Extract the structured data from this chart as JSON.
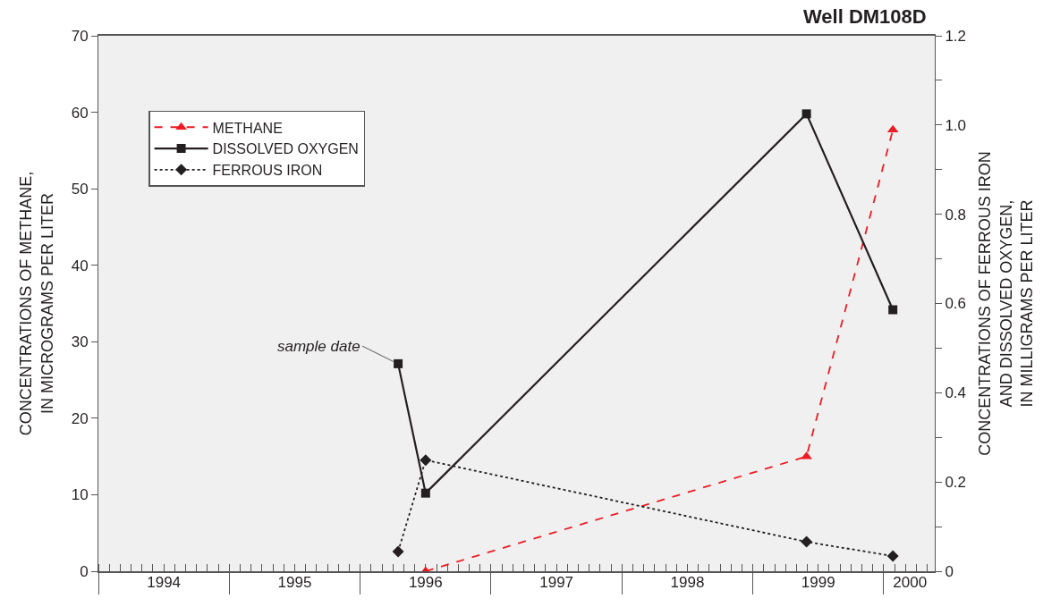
{
  "chart_data": {
    "type": "line",
    "title": "Well DM108D",
    "ylabel": "CONCENTRATIONS OF METHANE,\nIN MICROGRAMS PER LITER",
    "y2label": "CONCENTRATIONS OF FERROUS IRON\nAND DISSOLVED OXYGEN,\nIN MILLIGRAMS PER LITER",
    "series": [
      {
        "name": "METHANE",
        "color": "#ed1c24",
        "x": [
          1996.5,
          1999.41,
          2000.07
        ],
        "values": [
          0,
          15,
          57.7
        ],
        "marker": "triangle",
        "line_style": "dashed"
      },
      {
        "name": "DISSOLVED OXYGEN",
        "color": "#231f20",
        "x": [
          1996.29,
          1996.5,
          1999.41,
          2000.07
        ],
        "values": [
          0.465,
          0.175,
          1.025,
          0.586
        ],
        "marker": "square",
        "line_style": "solid",
        "axis": "y2"
      },
      {
        "name": "FERROUS IRON",
        "color": "#231f20",
        "x": [
          1996.29,
          1996.5,
          1999.41,
          2000.07
        ],
        "values": [
          0.044,
          0.249,
          0.066,
          0.034
        ],
        "marker": "diamond",
        "line_style": "dotted",
        "axis": "y2"
      }
    ],
    "annotations": [
      {
        "text": "sample date",
        "x": 1996.29,
        "y": 27.1
      }
    ],
    "xlim": [
      1994,
      2000.39
    ],
    "xticks": [
      {
        "value": 1994,
        "label": null
      },
      {
        "value": 1994.5,
        "label": "1994"
      },
      {
        "value": 1995,
        "label": null
      },
      {
        "value": 1995.5,
        "label": "1995"
      },
      {
        "value": 1996,
        "label": null
      },
      {
        "value": 1996.5,
        "label": "1996"
      },
      {
        "value": 1997,
        "label": null
      },
      {
        "value": 1997.5,
        "label": "1997"
      },
      {
        "value": 1998,
        "label": null
      },
      {
        "value": 1998.5,
        "label": "1998"
      },
      {
        "value": 1999,
        "label": null
      },
      {
        "value": 1999.5,
        "label": "1999"
      },
      {
        "value": 2000,
        "label": null
      },
      {
        "value": 2000.2,
        "label": "2000"
      }
    ],
    "ylim": [
      0,
      70
    ],
    "yticks": [
      0,
      10,
      20,
      30,
      40,
      50,
      60,
      70
    ],
    "y2lim": [
      0,
      1.2
    ],
    "y2ticks": [
      0,
      {
        "value": 0.2,
        "label": "0.2"
      },
      {
        "value": 0.4,
        "label": "0.4"
      },
      {
        "value": 0.6,
        "label": "0.6"
      },
      {
        "value": 0.8,
        "label": "0.8"
      },
      {
        "value": 1.0,
        "label": "1.0"
      },
      {
        "value": 1.2,
        "label": "1.2"
      }
    ],
    "grid": false,
    "legend": "top left"
  }
}
